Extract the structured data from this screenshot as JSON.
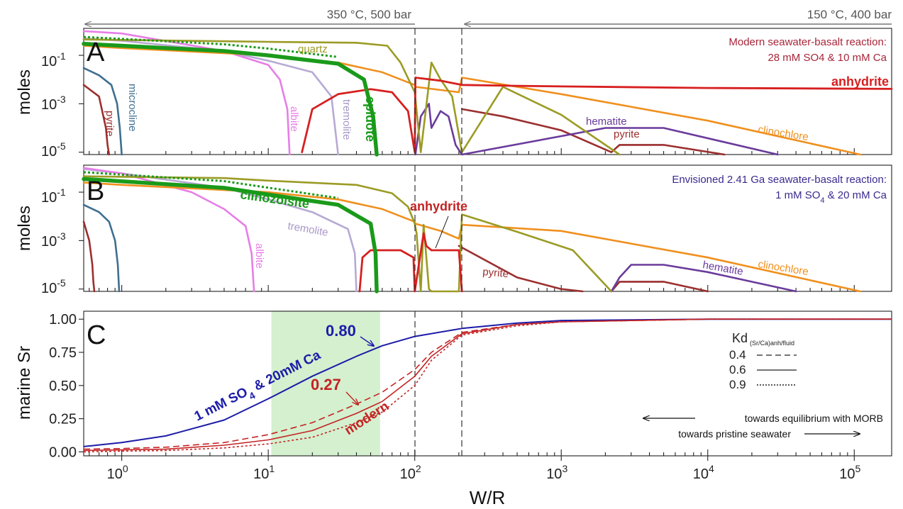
{
  "header": {
    "left_condition": "350 °C, 500 bar",
    "right_condition": "150 °C, 400 bar"
  },
  "x_axis": {
    "title": "W/R",
    "scale": "log",
    "range": [
      0.55,
      180000
    ],
    "ticks": [
      1,
      10,
      100,
      1000,
      10000,
      100000
    ],
    "tick_labels": [
      "10^0",
      "10^1",
      "10^2",
      "10^3",
      "10^4",
      "10^5"
    ]
  },
  "vlines": [
    100,
    210
  ],
  "colors": {
    "anhydrite": "#d71f1f",
    "quartz": "#9b9b25",
    "clinochlore": "#f0901e",
    "epidote": "#1a9a1a",
    "tremolite": "#b7a9d3",
    "albite": "#e77ee6",
    "microcline": "#3f6f90",
    "pyrite": "#9b2f2f",
    "hematite": "#6a3b9c",
    "blue": "#1c1ca8",
    "red": "#c42323",
    "green_band": "#d4f0cf"
  },
  "panels": {
    "A": {
      "letter": "A",
      "ylabel": "moles",
      "y_scale": "log",
      "y_range": [
        8e-06,
        1.3
      ],
      "y_ticks": [
        0.1,
        0.001,
        1e-05
      ],
      "y_tick_labels": [
        "10^-1",
        "10^-3",
        "10^-5"
      ],
      "note_lines": [
        "Modern seawater-basalt reaction:",
        "28 mM SO4 & 10 mM Ca"
      ],
      "labels": {
        "quartz": "quartz",
        "anhydrite": "anhydrite",
        "microcline": "microcline",
        "pyrite": "pyrite",
        "albite": "albite",
        "tremolite": "tremolite",
        "epidote": "epidote",
        "hematite": "hematite",
        "pyrite2": "pyrite",
        "clinochlore": "clinochlore"
      }
    },
    "B": {
      "letter": "B",
      "ylabel": "moles",
      "y_scale": "log",
      "y_range": [
        8e-06,
        1.3
      ],
      "y_ticks": [
        0.1,
        0.001,
        1e-05
      ],
      "y_tick_labels": [
        "10^-1",
        "10^-3",
        "10^-5"
      ],
      "note_lines": [
        "Envisioned 2.41 Ga seawater-basalt reaction:",
        "1 mM SO4 & 20 mM Ca"
      ],
      "labels": {
        "clinozoisite": "clinozoisite",
        "anhydrite": "anhydrite",
        "tremolite": "tremolite",
        "albite": "albite",
        "pyrite": "pyrite",
        "hematite": "hematite",
        "clinochlore": "clinochlore"
      }
    },
    "C": {
      "letter": "C",
      "ylabel": "marine Sr",
      "y_range": [
        -0.03,
        1.06
      ],
      "y_ticks": [
        0,
        0.25,
        0.5,
        0.75,
        1.0
      ],
      "y_tick_labels": [
        "0.00",
        "0.25",
        "0.50",
        "0.75",
        "1.00"
      ],
      "band": [
        10.5,
        58
      ],
      "value_blue": "0.80",
      "value_red": "0.27",
      "curve_blue_label": "1 mM SO4 & 20mM Ca",
      "curve_red_label": "modern",
      "legend_title": "Kd",
      "legend_sub": "(Sr/Ca)anh/fluid",
      "legend_items": [
        "0.4",
        "0.6",
        "0.9"
      ],
      "arrow_left_text": "towards equilibrium with MORB",
      "arrow_right_text": "towards pristine seawater"
    }
  },
  "chart_data": [
    {
      "type": "line",
      "panel": "A",
      "title": "Modern seawater-basalt reaction: 28 mM SO4 & 10 mM Ca",
      "xlabel": "W/R",
      "ylabel": "moles",
      "series": [
        {
          "name": "anhydrite",
          "color": "#d71f1f",
          "x": [
            17,
            20,
            30,
            50,
            70,
            90,
            100,
            101,
            150,
            210,
            500,
            1000,
            10000,
            180000
          ],
          "y": [
            1e-05,
            0.0006,
            0.0025,
            0.004,
            0.003,
            0.0005,
            1e-05,
            0.012,
            0.009,
            0.006,
            0.0055,
            0.0052,
            0.0045,
            0.0041
          ]
        },
        {
          "name": "quartz",
          "color": "#9b9b25",
          "x": [
            0.55,
            5,
            10,
            40,
            65,
            80,
            100,
            110,
            130,
            150,
            180,
            210,
            400,
            1000,
            2500
          ],
          "y": [
            0.45,
            0.38,
            0.36,
            0.33,
            0.25,
            0.05,
            0.003,
            1e-05,
            0.05,
            0.01,
            0.002,
            1e-05,
            0.005,
            0.00035,
            8e-06
          ]
        },
        {
          "name": "clinochlore",
          "color": "#f0901e",
          "x": [
            0.55,
            1,
            10,
            30,
            60,
            100,
            101,
            200,
            210,
            1000,
            10000,
            110000
          ],
          "y": [
            0.25,
            0.2,
            0.1,
            0.05,
            0.02,
            0.006,
            0.005,
            0.003,
            0.012,
            0.0025,
            0.0002,
            8e-06
          ]
        },
        {
          "name": "epidote",
          "color": "#1a9a1a",
          "x": [
            0.55,
            1,
            5,
            10,
            30,
            45,
            52,
            55
          ],
          "y": [
            0.3,
            0.25,
            0.15,
            0.1,
            0.045,
            0.01,
            0.0003,
            8e-06
          ]
        },
        {
          "name": "tremolite",
          "color": "#b7a9d3",
          "x": [
            0.55,
            1,
            5,
            10,
            20,
            27,
            30
          ],
          "y": [
            0.5,
            0.4,
            0.15,
            0.06,
            0.02,
            0.002,
            8e-06
          ]
        },
        {
          "name": "albite",
          "color": "#e77ee6",
          "x": [
            0.55,
            1,
            5,
            10,
            12,
            13.5,
            14
          ],
          "y": [
            1.0,
            0.8,
            0.15,
            0.04,
            0.01,
            0.0006,
            8e-06
          ]
        },
        {
          "name": "microcline",
          "color": "#3f6f90",
          "x": [
            0.55,
            0.7,
            0.85,
            0.93,
            0.97,
            1.0
          ],
          "y": [
            0.03,
            0.015,
            0.006,
            0.001,
            0.0001,
            8e-06
          ]
        },
        {
          "name": "pyrite",
          "color": "#9b2f2f",
          "x": [
            0.55,
            0.7,
            0.78,
            0.8,
            0.82
          ],
          "y": [
            0.006,
            0.002,
            0.0001,
            2e-05,
            8e-06
          ]
        },
        {
          "name": "hematite",
          "color": "#6a3b9c",
          "x": [
            101,
            110,
            125,
            130,
            150,
            170,
            190,
            210,
            2000,
            5000,
            30000
          ],
          "y": [
            8e-06,
            0.0003,
            0.001,
            0.0001,
            0.0005,
            0.0003,
            2e-05,
            8e-06,
            0.0001,
            0.0001,
            8e-06
          ]
        },
        {
          "name": "pyrite (late)",
          "color": "#9b2f2f",
          "x": [
            210,
            400,
            1000,
            2200,
            2500,
            5000,
            13000
          ],
          "y": [
            0.0006,
            0.0003,
            8e-05,
            1e-05,
            2e-05,
            2e-05,
            8e-06
          ]
        }
      ]
    },
    {
      "type": "line",
      "panel": "B",
      "title": "Envisioned 2.41 Ga seawater-basalt reaction: 1 mM SO4 & 20 mM Ca",
      "xlabel": "W/R",
      "ylabel": "moles",
      "series": [
        {
          "name": "anhydrite",
          "color": "#d71f1f",
          "x": [
            42,
            44,
            50,
            80,
            98,
            100,
            115,
            120,
            130,
            160,
            200,
            210
          ],
          "y": [
            8e-06,
            0.0002,
            0.0004,
            0.0004,
            0.0002,
            8e-06,
            0.002,
            0.0006,
            0.0004,
            0.0004,
            0.0004,
            8e-06
          ]
        },
        {
          "name": "quartz",
          "color": "#9b9b25",
          "x": [
            0.55,
            5,
            10,
            40,
            70,
            90,
            100,
            103,
            110,
            115,
            125,
            130,
            200,
            210,
            500,
            1200,
            2200
          ],
          "y": [
            0.45,
            0.38,
            0.3,
            0.2,
            0.09,
            0.025,
            0.005,
            0.002,
            8e-06,
            0.0045,
            1e-05,
            8e-06,
            8e-06,
            0.012,
            0.0023,
            0.0004,
            8e-06
          ]
        },
        {
          "name": "clinochlore",
          "color": "#f0901e",
          "x": [
            0.55,
            1,
            10,
            30,
            60,
            100,
            101,
            150,
            200,
            210,
            1000,
            10000,
            110000
          ],
          "y": [
            0.25,
            0.2,
            0.1,
            0.05,
            0.02,
            0.006,
            0.005,
            0.0025,
            0.0012,
            0.0045,
            0.0025,
            0.0002,
            8e-06
          ]
        },
        {
          "name": "clinozoisite",
          "color": "#1a9a1a",
          "x": [
            0.55,
            1,
            5,
            10,
            30,
            50,
            54,
            55
          ],
          "y": [
            0.35,
            0.28,
            0.15,
            0.08,
            0.03,
            0.005,
            0.0003,
            8e-06
          ]
        },
        {
          "name": "tremolite",
          "color": "#b7a9d3",
          "x": [
            0.55,
            1,
            5,
            10,
            20,
            35,
            39,
            40
          ],
          "y": [
            0.9,
            0.6,
            0.15,
            0.05,
            0.015,
            0.003,
            0.0003,
            8e-06
          ]
        },
        {
          "name": "albite",
          "color": "#e77ee6",
          "x": [
            0.55,
            1,
            3,
            5,
            7,
            7.7,
            8
          ],
          "y": [
            1.0,
            0.6,
            0.1,
            0.02,
            0.004,
            0.0003,
            8e-06
          ]
        },
        {
          "name": "microcline",
          "color": "#3f6f90",
          "x": [
            0.55,
            0.7,
            0.82,
            0.9,
            0.94,
            0.96
          ],
          "y": [
            0.03,
            0.015,
            0.006,
            0.001,
            0.0001,
            8e-06
          ]
        },
        {
          "name": "pyrite",
          "color": "#9b2f2f",
          "x": [
            0.55,
            0.6,
            0.63,
            0.64,
            0.65
          ],
          "y": [
            0.006,
            0.001,
            0.0001,
            2e-05,
            8e-06
          ]
        },
        {
          "name": "pyrite (late)",
          "color": "#9b2f2f",
          "x": [
            200,
            500,
            1000,
            1400
          ],
          "y": [
            0.0006,
            3e-05,
            1e-05,
            8e-06
          ]
        },
        {
          "name": "hematite",
          "color": "#6a3b9c",
          "x": [
            2200,
            2500,
            3000,
            5000,
            10000,
            40000
          ],
          "y": [
            8e-06,
            3e-05,
            0.0001,
            0.0001,
            5e-05,
            8e-06
          ]
        },
        {
          "name": "pyrite (late 2)",
          "color": "#9b2f2f",
          "x": [
            2200,
            2500,
            5000,
            10000
          ],
          "y": [
            8e-06,
            2e-05,
            2e-05,
            8e-06
          ]
        }
      ]
    },
    {
      "type": "line",
      "panel": "C",
      "xlabel": "W/R",
      "ylabel": "marine Sr",
      "x_scale": "log",
      "y_range": [
        -0.03,
        1.06
      ],
      "series": [
        {
          "name": "1 mM SO4 & 20mM Ca",
          "color": "#1c1ca8",
          "style": "solid",
          "x": [
            0.55,
            1,
            2,
            5,
            10,
            20,
            40,
            60,
            100,
            210,
            500,
            1000,
            10000,
            180000
          ],
          "y": [
            0.04,
            0.07,
            0.12,
            0.24,
            0.4,
            0.57,
            0.72,
            0.8,
            0.87,
            0.93,
            0.97,
            0.99,
            1.0,
            1.0
          ]
        },
        {
          "name": "modern Kd 0.4",
          "color": "#c42323",
          "style": "dashed",
          "x": [
            0.55,
            1,
            2,
            5,
            10,
            20,
            40,
            60,
            100,
            130,
            210,
            500,
            1000,
            10000,
            180000
          ],
          "y": [
            0.02,
            0.025,
            0.035,
            0.07,
            0.13,
            0.22,
            0.36,
            0.45,
            0.62,
            0.75,
            0.9,
            0.96,
            0.98,
            1.0,
            1.0
          ]
        },
        {
          "name": "modern Kd 0.6",
          "color": "#c42323",
          "style": "solid",
          "x": [
            0.55,
            1,
            2,
            5,
            10,
            20,
            40,
            60,
            100,
            130,
            210,
            500,
            1000,
            10000,
            180000
          ],
          "y": [
            0.01,
            0.015,
            0.02,
            0.05,
            0.09,
            0.16,
            0.29,
            0.38,
            0.57,
            0.72,
            0.89,
            0.96,
            0.98,
            1.0,
            1.0
          ]
        },
        {
          "name": "modern Kd 0.9",
          "color": "#c42323",
          "style": "dotted",
          "x": [
            0.55,
            1,
            2,
            5,
            10,
            20,
            40,
            60,
            100,
            130,
            210,
            500,
            1000,
            10000,
            180000
          ],
          "y": [
            0.0,
            0.005,
            0.01,
            0.03,
            0.06,
            0.11,
            0.22,
            0.3,
            0.5,
            0.69,
            0.88,
            0.95,
            0.98,
            1.0,
            1.0
          ]
        }
      ]
    }
  ]
}
